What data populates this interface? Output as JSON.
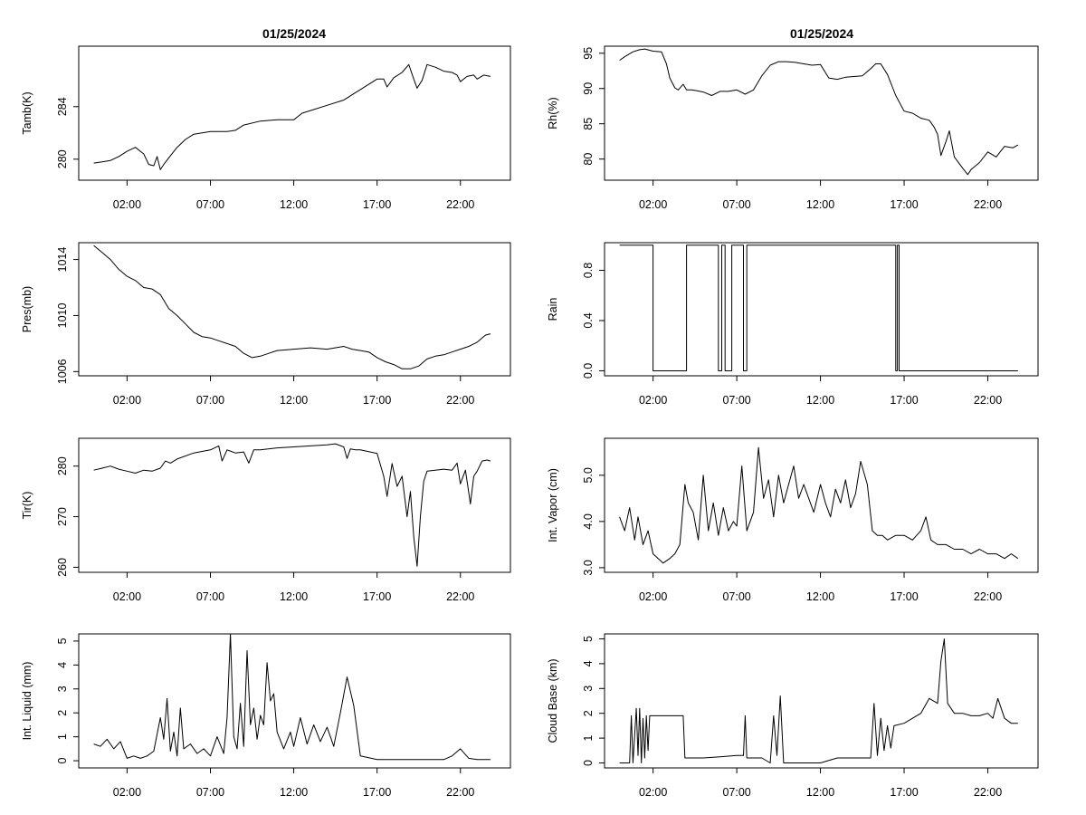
{
  "titles": [
    "01/25/2024",
    "01/25/2024"
  ],
  "x_tick_labels": [
    "02:00",
    "07:00",
    "12:00",
    "17:00",
    "22:00"
  ],
  "chart_data": [
    {
      "type": "line",
      "title": "01/25/2024",
      "xlabel": "",
      "ylabel": "Tamb(K)",
      "xlim": [
        -0.9,
        25.0
      ],
      "ylim": [
        278.4,
        288.6
      ],
      "yticks": [
        280,
        284
      ],
      "ytick_labels": [
        "280",
        "284"
      ],
      "x_hours": [
        0.0,
        0.5,
        1.0,
        1.5,
        2.0,
        2.5,
        3.0,
        3.3,
        3.6,
        3.8,
        4.0,
        4.2,
        4.5,
        5.0,
        5.5,
        6.0,
        7.0,
        8.0,
        8.5,
        9.0,
        10.0,
        11.0,
        12.0,
        12.5,
        13.0,
        14.0,
        15.0,
        15.5,
        16.0,
        16.5,
        17.0,
        17.4,
        17.6,
        18.0,
        18.5,
        18.9,
        19.2,
        19.4,
        19.7,
        20.0,
        20.5,
        21.0,
        21.5,
        21.8,
        22.0,
        22.4,
        22.8,
        23.0,
        23.4,
        23.8
      ],
      "values": [
        279.7,
        279.8,
        279.9,
        280.2,
        280.6,
        280.9,
        280.4,
        279.6,
        279.5,
        280.2,
        279.2,
        279.6,
        280.1,
        280.9,
        281.5,
        281.9,
        282.1,
        282.1,
        282.2,
        282.6,
        282.9,
        283.0,
        283.0,
        283.5,
        283.7,
        284.1,
        284.5,
        284.9,
        285.3,
        285.7,
        286.1,
        286.1,
        285.5,
        286.2,
        286.6,
        287.2,
        286.1,
        285.4,
        286.0,
        287.2,
        287.0,
        286.7,
        286.6,
        286.4,
        285.9,
        286.3,
        286.4,
        286.1,
        286.4,
        286.3
      ]
    },
    {
      "type": "line",
      "title": "01/25/2024",
      "xlabel": "",
      "ylabel": "Rh(%)",
      "xlim": [
        -0.9,
        25.0
      ],
      "ylim": [
        77.0,
        96.0
      ],
      "yticks": [
        80,
        85,
        90,
        95
      ],
      "ytick_labels": [
        "80",
        "85",
        "90",
        "95"
      ],
      "x_hours": [
        0.0,
        0.3,
        0.8,
        1.2,
        1.5,
        2.0,
        2.5,
        2.8,
        3.0,
        3.3,
        3.5,
        3.8,
        4.0,
        4.3,
        4.6,
        5.0,
        5.5,
        6.0,
        6.5,
        7.0,
        7.5,
        8.0,
        8.5,
        9.0,
        9.5,
        10.0,
        10.5,
        11.0,
        11.5,
        12.0,
        12.5,
        13.0,
        13.5,
        14.0,
        14.5,
        15.0,
        15.3,
        15.6,
        16.0,
        16.5,
        17.0,
        17.5,
        18.0,
        18.5,
        18.8,
        19.0,
        19.2,
        19.5,
        19.7,
        20.0,
        20.5,
        20.8,
        21.0,
        21.5,
        22.0,
        22.5,
        23.0,
        23.5,
        23.8
      ],
      "values": [
        94.0,
        94.5,
        95.2,
        95.5,
        95.6,
        95.3,
        95.2,
        93.5,
        91.5,
        90.1,
        89.8,
        90.6,
        89.8,
        89.8,
        89.7,
        89.5,
        89.0,
        89.6,
        89.6,
        89.8,
        89.2,
        89.8,
        91.8,
        93.3,
        93.8,
        93.8,
        93.7,
        93.5,
        93.3,
        93.4,
        91.5,
        91.3,
        91.6,
        91.7,
        91.8,
        92.8,
        93.5,
        93.5,
        92.0,
        89.0,
        86.8,
        86.5,
        85.8,
        85.5,
        84.5,
        83.5,
        80.5,
        82.5,
        84.0,
        80.3,
        78.7,
        77.8,
        78.5,
        79.5,
        81.0,
        80.3,
        81.8,
        81.6,
        82.0
      ]
    },
    {
      "type": "line",
      "title": "",
      "xlabel": "",
      "ylabel": "Pres(mb)",
      "xlim": [
        -0.9,
        25.0
      ],
      "ylim": [
        1005.7,
        1015.2
      ],
      "yticks": [
        1006,
        1010,
        1014
      ],
      "ytick_labels": [
        "1006",
        "1010",
        "1014"
      ],
      "x_hours": [
        0.0,
        0.5,
        1.0,
        1.5,
        2.0,
        2.5,
        3.0,
        3.5,
        4.0,
        4.5,
        5.0,
        5.5,
        6.0,
        6.5,
        7.0,
        7.5,
        8.0,
        8.5,
        9.0,
        9.5,
        10.0,
        10.5,
        11.0,
        12.0,
        13.0,
        14.0,
        15.0,
        15.5,
        16.0,
        16.5,
        17.0,
        17.5,
        18.0,
        18.5,
        19.0,
        19.5,
        20.0,
        20.5,
        21.0,
        21.5,
        22.0,
        22.5,
        23.0,
        23.5,
        23.8
      ],
      "values": [
        1015.0,
        1014.5,
        1014.0,
        1013.3,
        1012.8,
        1012.5,
        1012.0,
        1011.9,
        1011.5,
        1010.5,
        1010.0,
        1009.4,
        1008.8,
        1008.5,
        1008.4,
        1008.2,
        1008.0,
        1007.8,
        1007.3,
        1007.0,
        1007.1,
        1007.3,
        1007.5,
        1007.6,
        1007.7,
        1007.6,
        1007.8,
        1007.6,
        1007.5,
        1007.4,
        1007.0,
        1006.7,
        1006.5,
        1006.2,
        1006.2,
        1006.4,
        1006.9,
        1007.1,
        1007.2,
        1007.4,
        1007.6,
        1007.8,
        1008.1,
        1008.6,
        1008.7
      ]
    },
    {
      "type": "line",
      "title": "",
      "xlabel": "",
      "ylabel": "Rain",
      "xlim": [
        -0.9,
        25.0
      ],
      "ylim": [
        -0.04,
        1.02
      ],
      "yticks": [
        0.0,
        0.4,
        0.8
      ],
      "ytick_labels": [
        "0.0",
        "0.4",
        "0.8"
      ],
      "x_hours": [
        0.0,
        2.0,
        2.0,
        4.0,
        4.0,
        5.9,
        5.9,
        6.1,
        6.1,
        6.3,
        6.3,
        6.7,
        6.7,
        7.4,
        7.4,
        7.6,
        7.6,
        8.1,
        8.1,
        16.5,
        16.5,
        16.6,
        16.6,
        16.7,
        16.7,
        23.8
      ],
      "values": [
        1,
        1,
        0,
        0,
        1,
        1,
        0,
        0,
        1,
        1,
        0,
        0,
        1,
        1,
        0,
        0,
        1,
        1,
        1,
        1,
        0,
        0,
        1,
        1,
        0,
        0
      ]
    },
    {
      "type": "line",
      "title": "",
      "xlabel": "",
      "ylabel": "Tir(K)",
      "xlim": [
        -0.9,
        25.0
      ],
      "ylim": [
        259.0,
        285.5
      ],
      "yticks": [
        260,
        270,
        280
      ],
      "ytick_labels": [
        "260",
        "270",
        "280"
      ],
      "x_hours": [
        0.0,
        0.5,
        1.0,
        1.5,
        2.0,
        2.5,
        3.0,
        3.5,
        4.0,
        4.3,
        4.6,
        5.0,
        6.0,
        7.0,
        7.5,
        7.7,
        8.0,
        8.5,
        9.0,
        9.3,
        9.6,
        10.0,
        11.0,
        12.0,
        13.0,
        14.0,
        14.5,
        15.0,
        15.2,
        15.4,
        15.7,
        16.0,
        17.0,
        17.4,
        17.6,
        17.9,
        18.2,
        18.5,
        18.8,
        19.0,
        19.2,
        19.4,
        19.6,
        19.8,
        20.0,
        20.5,
        21.0,
        21.5,
        21.8,
        22.0,
        22.3,
        22.6,
        22.8,
        23.0,
        23.3,
        23.6,
        23.8
      ],
      "values": [
        279.2,
        279.6,
        280.0,
        279.4,
        279.0,
        278.6,
        279.2,
        279.0,
        279.6,
        281.0,
        280.6,
        281.4,
        282.6,
        283.2,
        284.0,
        281.0,
        283.2,
        282.6,
        282.8,
        280.6,
        283.2,
        283.2,
        283.6,
        283.8,
        284.0,
        284.2,
        284.4,
        283.8,
        281.5,
        283.4,
        283.2,
        283.2,
        282.5,
        278.0,
        274.0,
        280.5,
        276.0,
        278.0,
        270.0,
        275.0,
        266.0,
        260.2,
        270.0,
        277.0,
        279.0,
        279.2,
        279.4,
        279.2,
        280.6,
        276.5,
        279.2,
        272.5,
        278.0,
        279.0,
        281.0,
        281.2,
        281.0
      ]
    },
    {
      "type": "line",
      "title": "",
      "xlabel": "",
      "ylabel": "Int. Vapor (cm)",
      "xlim": [
        -0.9,
        25.0
      ],
      "ylim": [
        2.9,
        5.8
      ],
      "yticks": [
        3.0,
        4.0,
        5.0
      ],
      "ytick_labels": [
        "3.0",
        "4.0",
        "5.0"
      ],
      "x_hours": [
        0.0,
        0.3,
        0.6,
        0.9,
        1.1,
        1.4,
        1.7,
        2.0,
        2.3,
        2.6,
        3.0,
        3.3,
        3.6,
        3.9,
        4.1,
        4.4,
        4.7,
        5.0,
        5.3,
        5.6,
        5.9,
        6.2,
        6.5,
        6.8,
        7.0,
        7.3,
        7.6,
        8.0,
        8.3,
        8.6,
        8.9,
        9.2,
        9.5,
        9.8,
        10.1,
        10.4,
        10.7,
        11.0,
        11.3,
        11.6,
        12.0,
        12.3,
        12.6,
        12.9,
        13.2,
        13.5,
        13.8,
        14.1,
        14.4,
        14.8,
        15.1,
        15.4,
        15.7,
        16.0,
        16.5,
        17.0,
        17.5,
        18.0,
        18.3,
        18.6,
        19.0,
        19.5,
        20.0,
        20.5,
        21.0,
        21.5,
        22.0,
        22.5,
        23.0,
        23.4,
        23.8
      ],
      "values": [
        4.1,
        3.8,
        4.3,
        3.6,
        4.1,
        3.5,
        3.8,
        3.3,
        3.2,
        3.1,
        3.2,
        3.3,
        3.5,
        4.8,
        4.4,
        4.2,
        3.6,
        5.0,
        3.8,
        4.4,
        3.7,
        4.3,
        3.8,
        4.0,
        3.9,
        5.2,
        3.8,
        4.2,
        5.6,
        4.5,
        4.9,
        4.1,
        5.0,
        4.4,
        4.8,
        5.2,
        4.5,
        4.8,
        4.5,
        4.2,
        4.8,
        4.4,
        4.1,
        4.7,
        4.4,
        4.9,
        4.3,
        4.6,
        5.3,
        4.8,
        3.8,
        3.7,
        3.7,
        3.6,
        3.7,
        3.7,
        3.6,
        3.8,
        4.1,
        3.6,
        3.5,
        3.5,
        3.4,
        3.4,
        3.3,
        3.4,
        3.3,
        3.3,
        3.2,
        3.3,
        3.2
      ]
    },
    {
      "type": "line",
      "title": "",
      "xlabel": "",
      "ylabel": "Int. Liquid (mm)",
      "xlim": [
        -0.9,
        25.0
      ],
      "ylim": [
        -0.3,
        5.3
      ],
      "yticks": [
        0,
        1,
        2,
        3,
        4,
        5
      ],
      "ytick_labels": [
        "0",
        "1",
        "2",
        "3",
        "4",
        "5"
      ],
      "x_hours": [
        0.0,
        0.4,
        0.8,
        1.2,
        1.6,
        2.0,
        2.4,
        2.8,
        3.2,
        3.6,
        4.0,
        4.2,
        4.4,
        4.6,
        4.8,
        5.0,
        5.2,
        5.4,
        5.8,
        6.2,
        6.6,
        7.0,
        7.4,
        7.8,
        8.0,
        8.2,
        8.4,
        8.6,
        8.8,
        9.0,
        9.2,
        9.4,
        9.6,
        9.8,
        10.0,
        10.2,
        10.4,
        10.6,
        10.8,
        11.0,
        11.4,
        11.8,
        12.0,
        12.4,
        12.8,
        13.2,
        13.6,
        14.0,
        14.4,
        14.8,
        15.2,
        15.6,
        16.0,
        17.0,
        18.0,
        19.0,
        20.0,
        21.0,
        21.5,
        22.0,
        22.5,
        23.0,
        23.8
      ],
      "values": [
        0.7,
        0.6,
        0.9,
        0.5,
        0.8,
        0.1,
        0.2,
        0.1,
        0.2,
        0.4,
        1.8,
        0.9,
        2.6,
        0.4,
        1.2,
        0.2,
        2.2,
        0.5,
        0.7,
        0.3,
        0.5,
        0.2,
        1.0,
        0.3,
        1.8,
        5.3,
        1.0,
        0.5,
        2.4,
        0.6,
        4.6,
        1.5,
        2.2,
        0.9,
        1.9,
        1.5,
        4.1,
        2.5,
        2.8,
        1.2,
        0.5,
        1.2,
        0.6,
        1.8,
        0.7,
        1.5,
        0.8,
        1.4,
        0.6,
        2.0,
        3.5,
        2.3,
        0.2,
        0.05,
        0.05,
        0.05,
        0.05,
        0.05,
        0.2,
        0.5,
        0.1,
        0.05,
        0.05
      ]
    },
    {
      "type": "line",
      "title": "",
      "xlabel": "",
      "ylabel": "Cloud Base (km)",
      "xlim": [
        -0.9,
        25.0
      ],
      "ylim": [
        -0.2,
        5.2
      ],
      "yticks": [
        0,
        1,
        2,
        3,
        4,
        5
      ],
      "ytick_labels": [
        "0",
        "1",
        "2",
        "3",
        "4",
        "5"
      ],
      "x_hours": [
        0.0,
        0.6,
        0.7,
        0.8,
        1.0,
        1.1,
        1.2,
        1.3,
        1.4,
        1.5,
        1.6,
        1.7,
        1.8,
        1.9,
        2.0,
        3.0,
        3.8,
        3.9,
        4.5,
        5.0,
        6.0,
        7.0,
        7.4,
        7.5,
        7.6,
        8.0,
        8.5,
        9.0,
        9.2,
        9.4,
        9.6,
        9.8,
        10.0,
        12.0,
        13.0,
        14.0,
        15.0,
        15.2,
        15.4,
        15.6,
        15.8,
        16.0,
        16.2,
        16.4,
        17.0,
        17.5,
        18.0,
        18.5,
        19.0,
        19.2,
        19.4,
        19.6,
        20.0,
        20.5,
        21.0,
        21.5,
        22.0,
        22.3,
        22.6,
        23.0,
        23.4,
        23.8
      ],
      "values": [
        0.0,
        0.0,
        1.9,
        0.0,
        2.2,
        0.3,
        2.2,
        0.0,
        1.8,
        0.2,
        1.9,
        0.5,
        1.9,
        1.9,
        1.9,
        1.9,
        1.9,
        0.2,
        0.2,
        0.2,
        0.25,
        0.3,
        0.3,
        1.9,
        0.2,
        0.2,
        0.2,
        0.0,
        1.9,
        0.3,
        2.7,
        0.0,
        0.0,
        0.0,
        0.2,
        0.2,
        0.2,
        2.4,
        0.3,
        1.8,
        0.5,
        1.5,
        0.6,
        1.5,
        1.6,
        1.8,
        2.0,
        2.6,
        2.4,
        4.1,
        5.0,
        2.4,
        2.0,
        2.0,
        1.9,
        1.9,
        2.0,
        1.8,
        2.6,
        1.8,
        1.6,
        1.6
      ]
    }
  ]
}
